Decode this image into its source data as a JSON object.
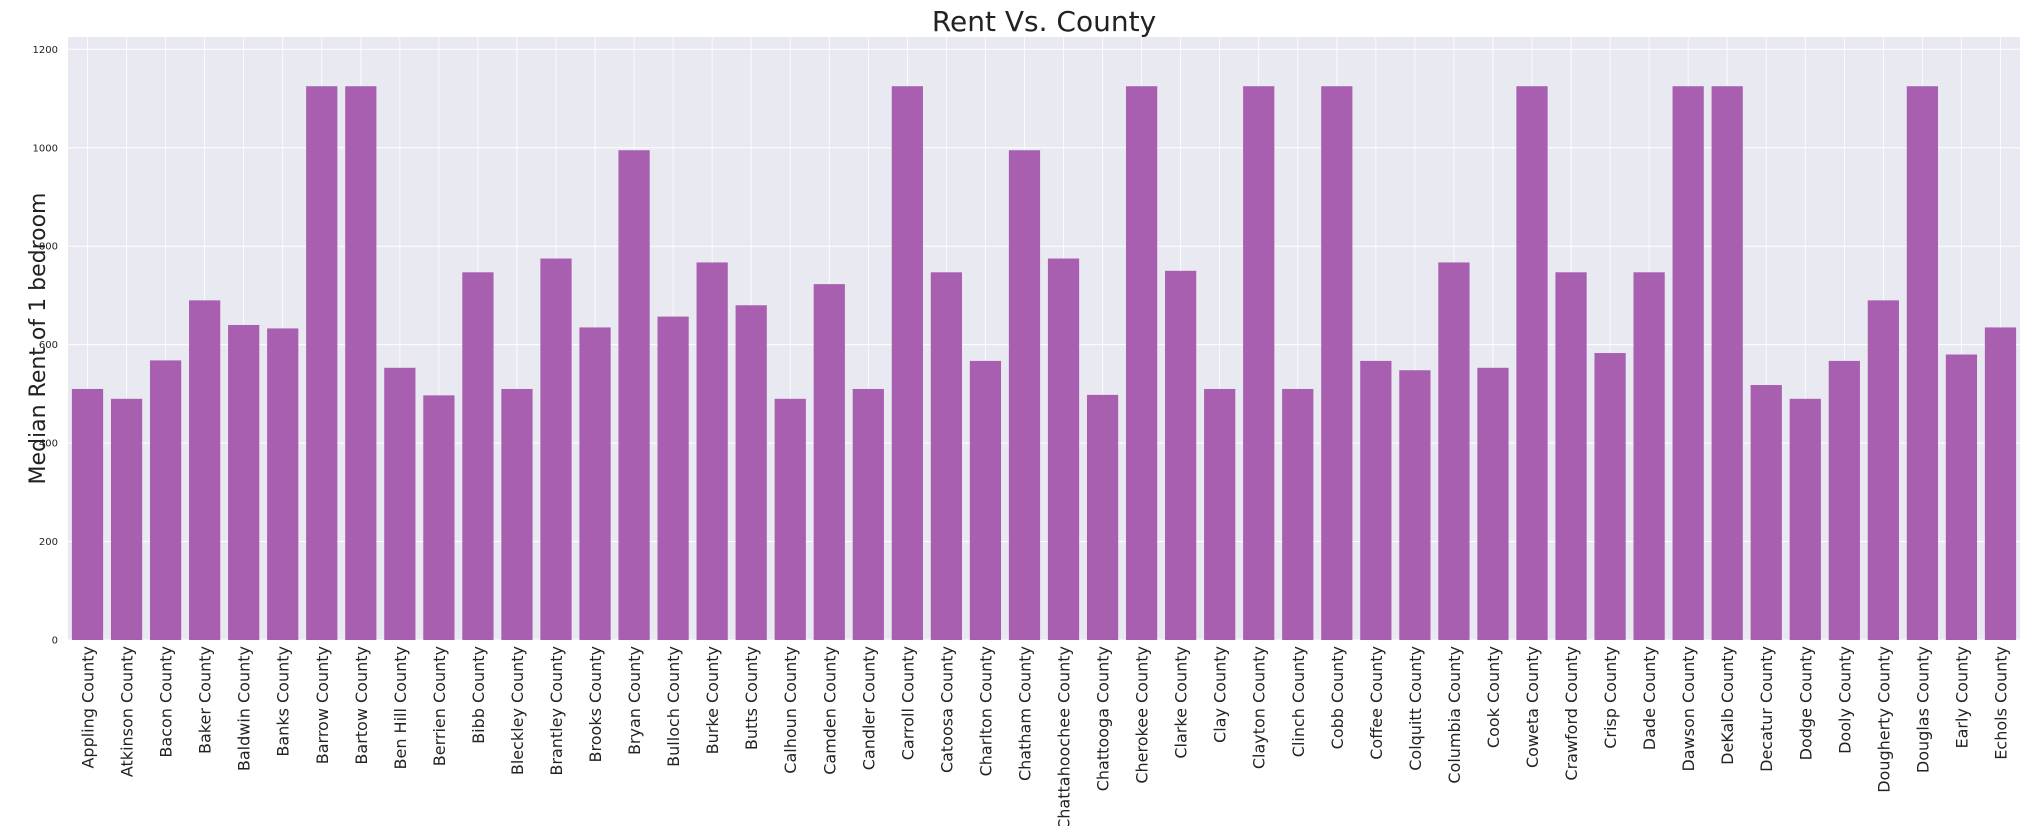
{
  "chart_data": {
    "type": "bar",
    "title": "Rent Vs. County",
    "xlabel": "",
    "ylabel": "Median Rent of 1 bedroom",
    "ylim": [
      0,
      1225
    ],
    "yticks": [
      0,
      200,
      400,
      600,
      800,
      1000,
      1200
    ],
    "grid": true,
    "bar_color": "#a85fb0",
    "background_color": "#e9e9f1",
    "categories": [
      "Appling County",
      "Atkinson County",
      "Bacon County",
      "Baker County",
      "Baldwin County",
      "Banks County",
      "Barrow County",
      "Bartow County",
      "Ben Hill County",
      "Berrien County",
      "Bibb County",
      "Bleckley County",
      "Brantley County",
      "Brooks County",
      "Bryan County",
      "Bulloch County",
      "Burke County",
      "Butts County",
      "Calhoun County",
      "Camden County",
      "Candler County",
      "Carroll County",
      "Catoosa County",
      "Charlton County",
      "Chatham County",
      "Chattahoochee County",
      "Chattooga County",
      "Cherokee County",
      "Clarke County",
      "Clay County",
      "Clayton County",
      "Clinch County",
      "Cobb County",
      "Coffee County",
      "Colquitt County",
      "Columbia County",
      "Cook County",
      "Coweta County",
      "Crawford County",
      "Crisp County",
      "Dade County",
      "Dawson County",
      "DeKalb County",
      "Decatur County",
      "Dodge County",
      "Dooly County",
      "Dougherty County",
      "Douglas County",
      "Early County",
      "Echols County"
    ],
    "values": [
      510,
      490,
      568,
      690,
      640,
      633,
      1125,
      1125,
      553,
      497,
      747,
      510,
      775,
      635,
      995,
      657,
      767,
      680,
      490,
      723,
      510,
      1125,
      747,
      567,
      995,
      775,
      498,
      1125,
      750,
      510,
      1125,
      510,
      1125,
      567,
      548,
      767,
      553,
      1125,
      747,
      583,
      747,
      1125,
      1125,
      518,
      490,
      567,
      690,
      1125,
      580,
      635
    ]
  }
}
